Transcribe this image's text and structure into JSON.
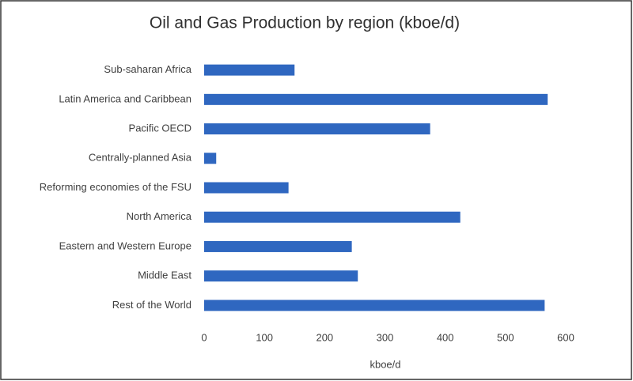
{
  "chart_data": {
    "type": "bar",
    "orientation": "horizontal",
    "title": "Oil and Gas Production by region (kboe/d)",
    "x_label": "kboe/d",
    "categories": [
      "Sub-saharan Africa",
      "Latin America and Caribbean",
      "Pacific OECD",
      "Centrally-planned Asia",
      "Reforming economies of the FSU",
      "North America",
      "Eastern and Western Europe",
      "Middle East",
      "Rest of the World"
    ],
    "values": [
      150,
      570,
      375,
      20,
      140,
      425,
      245,
      255,
      565
    ],
    "color": "#2f67c0",
    "xlim": [
      0,
      600
    ],
    "xticks": [
      0,
      100,
      200,
      300,
      400,
      500,
      600
    ],
    "grid": false
  }
}
